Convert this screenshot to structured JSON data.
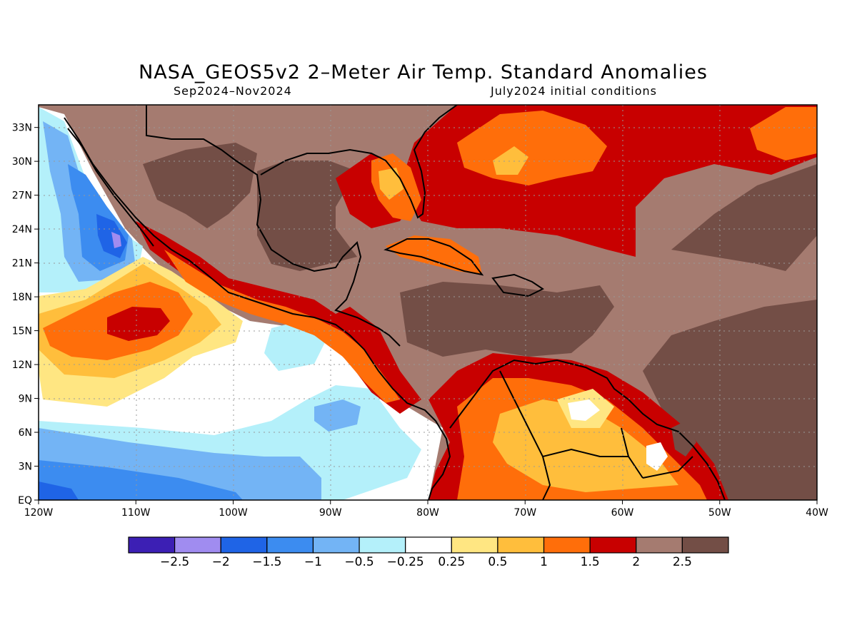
{
  "title": "NASA_GEOS5v2 2–Meter Air Temp. Standard Anomalies",
  "subtitle_left": "Sep2024–Nov2024",
  "subtitle_right": "July2024 initial conditions",
  "map": {
    "lon_range": [
      -120,
      -40
    ],
    "lat_range": [
      0,
      35
    ],
    "lon_ticks": [
      "120W",
      "110W",
      "100W",
      "90W",
      "80W",
      "70W",
      "60W",
      "50W",
      "40W"
    ],
    "lat_ticks": [
      "EQ",
      "3N",
      "6N",
      "9N",
      "12N",
      "15N",
      "18N",
      "21N",
      "24N",
      "27N",
      "30N",
      "33N"
    ],
    "gridlines": "dotted"
  },
  "colorbar": {
    "colors": [
      "#3c1fb4",
      "#a08cf0",
      "#1f64e6",
      "#3c8cf0",
      "#73b4f5",
      "#b4f0fa",
      "#ffffff",
      "#ffe682",
      "#ffbe3c",
      "#ff6e0a",
      "#c80000",
      "#a57b70",
      "#734e46"
    ],
    "labels": [
      "−2.5",
      "−2",
      "−1.5",
      "−1",
      "−0.5",
      "−0.25",
      "0.25",
      "0.5",
      "1",
      "1.5",
      "2",
      "2.5"
    ]
  }
}
